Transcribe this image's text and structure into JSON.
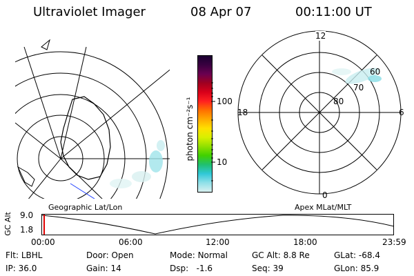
{
  "header": {
    "instrument": "Ultraviolet Imager",
    "date": "08 Apr 07",
    "time": "00:11:00 UT"
  },
  "geo_panel": {
    "label": "Geographic Lat/Lon"
  },
  "mlt_panel": {
    "label": "Apex MLat/MLT",
    "mlt_labels": [
      "12",
      "18",
      "6",
      "0"
    ],
    "mlat_labels": [
      "60",
      "70",
      "80"
    ]
  },
  "colorbar": {
    "unit_label": "photon cm⁻²s⁻¹",
    "ticks": [
      "100",
      "10"
    ],
    "colors": [
      "#1a0030",
      "#3a0040",
      "#6a0050",
      "#a00020",
      "#d8001a",
      "#ff2020",
      "#ff7000",
      "#ffaa00",
      "#ffe000",
      "#d8f000",
      "#90e000",
      "#40d000",
      "#20c070",
      "#30c8d8",
      "#90e0e8",
      "#d8f0f0"
    ]
  },
  "altitude_plot": {
    "ylabel": "GC Alt",
    "yticks": [
      "9.0",
      "1.8"
    ],
    "xticks": [
      "00:00",
      "06:00",
      "12:00",
      "18:00",
      "23:59"
    ],
    "marker_color": "#e00000"
  },
  "status": {
    "row1": [
      {
        "key": "Flt:",
        "val": "LBHL"
      },
      {
        "key": "Door:",
        "val": "Open"
      },
      {
        "key": "Mode:",
        "val": "Normal"
      },
      {
        "key": "GC Alt:",
        "val": "8.8 Re"
      },
      {
        "key": "GLat:",
        "val": "-68.4"
      }
    ],
    "row2": [
      {
        "key": "IP:",
        "val": "36.0"
      },
      {
        "key": "Gain:",
        "val": "14"
      },
      {
        "key": "Dsp:",
        "val": "-1.6"
      },
      {
        "key": "Seq:",
        "val": "39"
      },
      {
        "key": "GLon:",
        "val": "85.9"
      }
    ]
  }
}
